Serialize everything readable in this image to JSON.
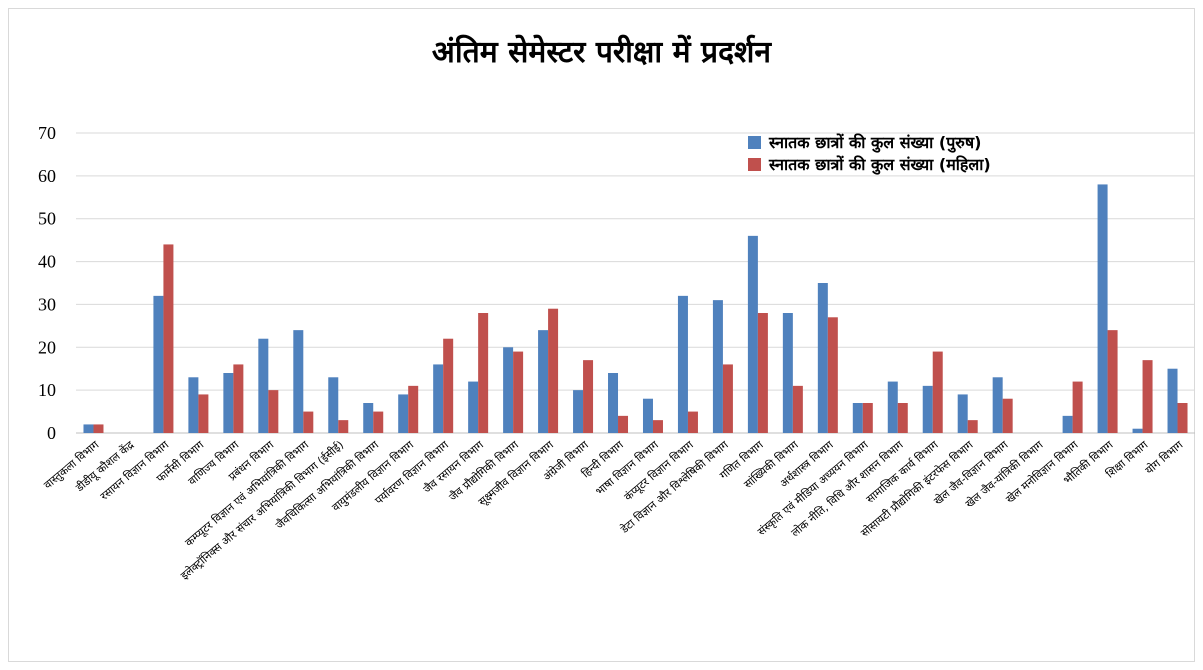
{
  "chart_data": {
    "type": "bar",
    "title": "अंतिम सेमेस्टर परीक्षा में प्रदर्शन",
    "xlabel": "",
    "ylabel": "",
    "ylim": [
      0,
      70
    ],
    "yticks": [
      0,
      10,
      20,
      30,
      40,
      50,
      60,
      70
    ],
    "grid": true,
    "legend_position": "top-right",
    "categories": [
      "वास्तुकला विभाग",
      "डीडीयू कौशल केंद्र",
      "रसायन विज्ञान विभाग",
      "फार्मेसी विभाग",
      "वाणिज्य विभाग",
      "प्रबंधन विभाग",
      "कम्प्यूटर विज्ञान एवं अभियांत्रिकी विभाग",
      "इलेक्ट्रॉनिक्स और संचार अभियांत्रिकी विभाग (ईसीई)",
      "जैवचिकित्सा अभियांत्रिकी विभाग",
      "वायुमंडलीय विज्ञान विभाग",
      "पर्यावरण विज्ञान विभाग",
      "जैव रसायन विभाग",
      "जैव प्रौद्योगिकी विभाग",
      "सूक्ष्मजीव विज्ञान विभाग",
      "अंग्रेजी विभाग",
      "हिन्दी विभाग",
      "भाषा विज्ञान विभाग",
      "कंप्यूटर विज्ञान विभाग",
      "डेटा विज्ञान और विश्लेषिकी विभाग",
      "गणित विभाग",
      "सांख्यिकी विभाग",
      "अर्थशास्त्र विभाग",
      "संस्कृति एवं मीडिया अध्ययन विभाग",
      "लोक नीति, विधि और शासन विभाग",
      "सामाजिक कार्य विभाग",
      "सोसायटी प्रौद्योगिकी इंटरफेस विभाग",
      "खेल जैव-विज्ञान विभाग",
      "खेल जैव-यांत्रिकी विभाग",
      "खेल मनोविज्ञान विभाग",
      "भौतिकी विभाग",
      "शिक्षा विभाग",
      "योग विभाग"
    ],
    "series": [
      {
        "name": "स्नातक छात्रों की कुल संख्या (पुरुष)",
        "color": "#4f81bd",
        "values": [
          2,
          0,
          32,
          13,
          14,
          22,
          24,
          13,
          7,
          9,
          16,
          12,
          20,
          24,
          10,
          14,
          8,
          32,
          31,
          46,
          28,
          35,
          7,
          12,
          11,
          9,
          13,
          0,
          4,
          58,
          1,
          15
        ]
      },
      {
        "name": "स्नातक छात्रों की कुल संख्या (महिला)",
        "color": "#c0504d",
        "values": [
          2,
          0,
          44,
          9,
          16,
          10,
          5,
          3,
          5,
          11,
          22,
          28,
          19,
          29,
          17,
          4,
          3,
          5,
          16,
          28,
          11,
          27,
          7,
          7,
          19,
          3,
          8,
          0,
          12,
          24,
          17,
          7
        ]
      }
    ]
  }
}
